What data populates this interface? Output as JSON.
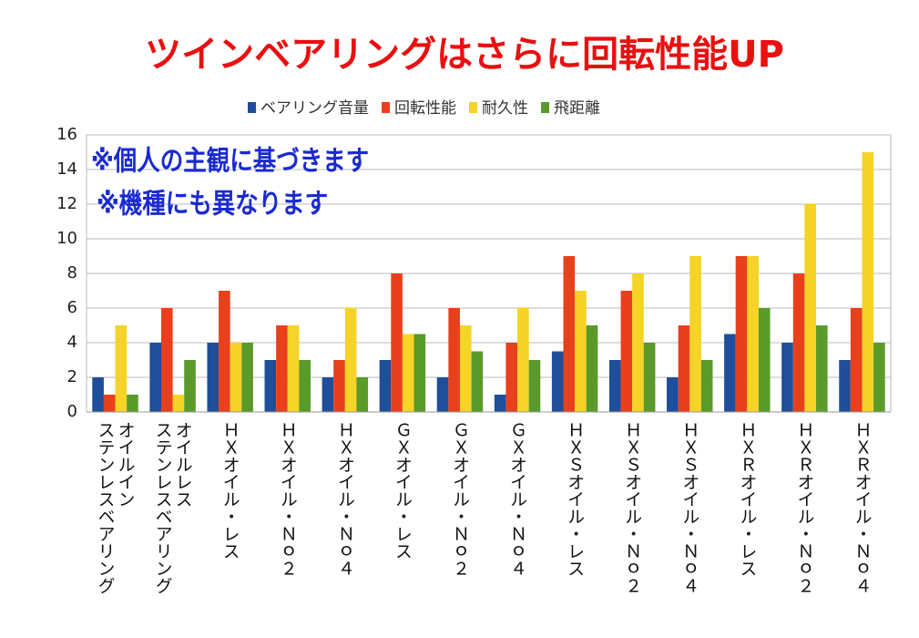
{
  "chart_data": {
    "type": "bar",
    "title": "ツインベアリングはさらに回転性能UP",
    "annotations": [
      "※個人の主観に基づきます",
      "※機種にも異なります"
    ],
    "categories": [
      "オイルイン\nステンレスベアリング",
      "オイルレス\nステンレスベアリング",
      "ＨＸオイル・レス",
      "ＨＸオイル・Ｎｏ２",
      "ＨＸオイル・Ｎｏ４",
      "ＧＸオイル・レス",
      "ＧＸオイル・Ｎｏ２",
      "ＧＸオイル・Ｎｏ４",
      "ＨＸＳオイル・レス",
      "ＨＸＳオイル・Ｎｏ２",
      "ＨＸＳオイル・Ｎｏ４",
      "ＨＸＲオイル・レス",
      "ＨＸＲオイル・Ｎｏ２",
      "ＨＸＲオイル・Ｎｏ４"
    ],
    "series": [
      {
        "name": "ベアリング音量",
        "color": "#1f4e9a",
        "values": [
          2,
          4,
          4,
          3,
          2,
          3,
          2,
          1,
          3.5,
          3,
          2,
          4.5,
          4,
          3
        ]
      },
      {
        "name": "回転性能",
        "color": "#e8401c",
        "values": [
          1,
          6,
          7,
          5,
          3,
          8,
          6,
          4,
          9,
          7,
          5,
          9,
          8,
          6
        ]
      },
      {
        "name": "耐久性",
        "color": "#f5d327",
        "values": [
          5,
          1,
          4,
          5,
          6,
          4.5,
          5,
          6,
          7,
          8,
          9,
          9,
          12,
          15
        ]
      },
      {
        "name": "飛距離",
        "color": "#5a9a2a",
        "values": [
          1,
          3,
          4,
          3,
          2,
          4.5,
          3.5,
          3,
          5,
          4,
          3,
          6,
          5,
          4
        ]
      }
    ],
    "ylim": [
      0,
      16
    ],
    "yticks": [
      0,
      2,
      4,
      6,
      8,
      10,
      12,
      14,
      16
    ],
    "grid": true,
    "legend": "top"
  }
}
